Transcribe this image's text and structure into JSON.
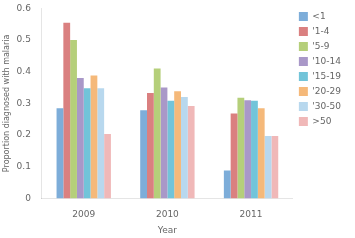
{
  "chart_data": {
    "type": "bar",
    "xlabel": "Year",
    "ylabel": "Proportion diagnosed with malaria",
    "categories": [
      "2009",
      "2010",
      "2011"
    ],
    "series": [
      {
        "name": "<1",
        "color": "#7dadd9",
        "values": [
          0.285,
          0.278,
          0.088
        ]
      },
      {
        "name": "'1-4",
        "color": "#da8080",
        "values": [
          0.555,
          0.333,
          0.268
        ]
      },
      {
        "name": "'5-9",
        "color": "#b5cf7a",
        "values": [
          0.5,
          0.41,
          0.318
        ]
      },
      {
        "name": "'10-14",
        "color": "#a998c8",
        "values": [
          0.38,
          0.35,
          0.31
        ]
      },
      {
        "name": "'15-19",
        "color": "#72c4d9",
        "values": [
          0.348,
          0.308,
          0.308
        ]
      },
      {
        "name": "'20-29",
        "color": "#f5b97a",
        "values": [
          0.388,
          0.338,
          0.285
        ]
      },
      {
        "name": "'30-50",
        "color": "#b8d8ee",
        "values": [
          0.348,
          0.32,
          0.197
        ]
      },
      {
        "name": ">50",
        "color": "#f0b8b8",
        "values": [
          0.203,
          0.292,
          0.197
        ]
      }
    ],
    "ylim": [
      0,
      0.6
    ],
    "yticks": [
      0,
      0.1,
      0.2,
      0.3,
      0.4,
      0.5,
      0.6
    ],
    "grid": false,
    "legend": "right"
  }
}
